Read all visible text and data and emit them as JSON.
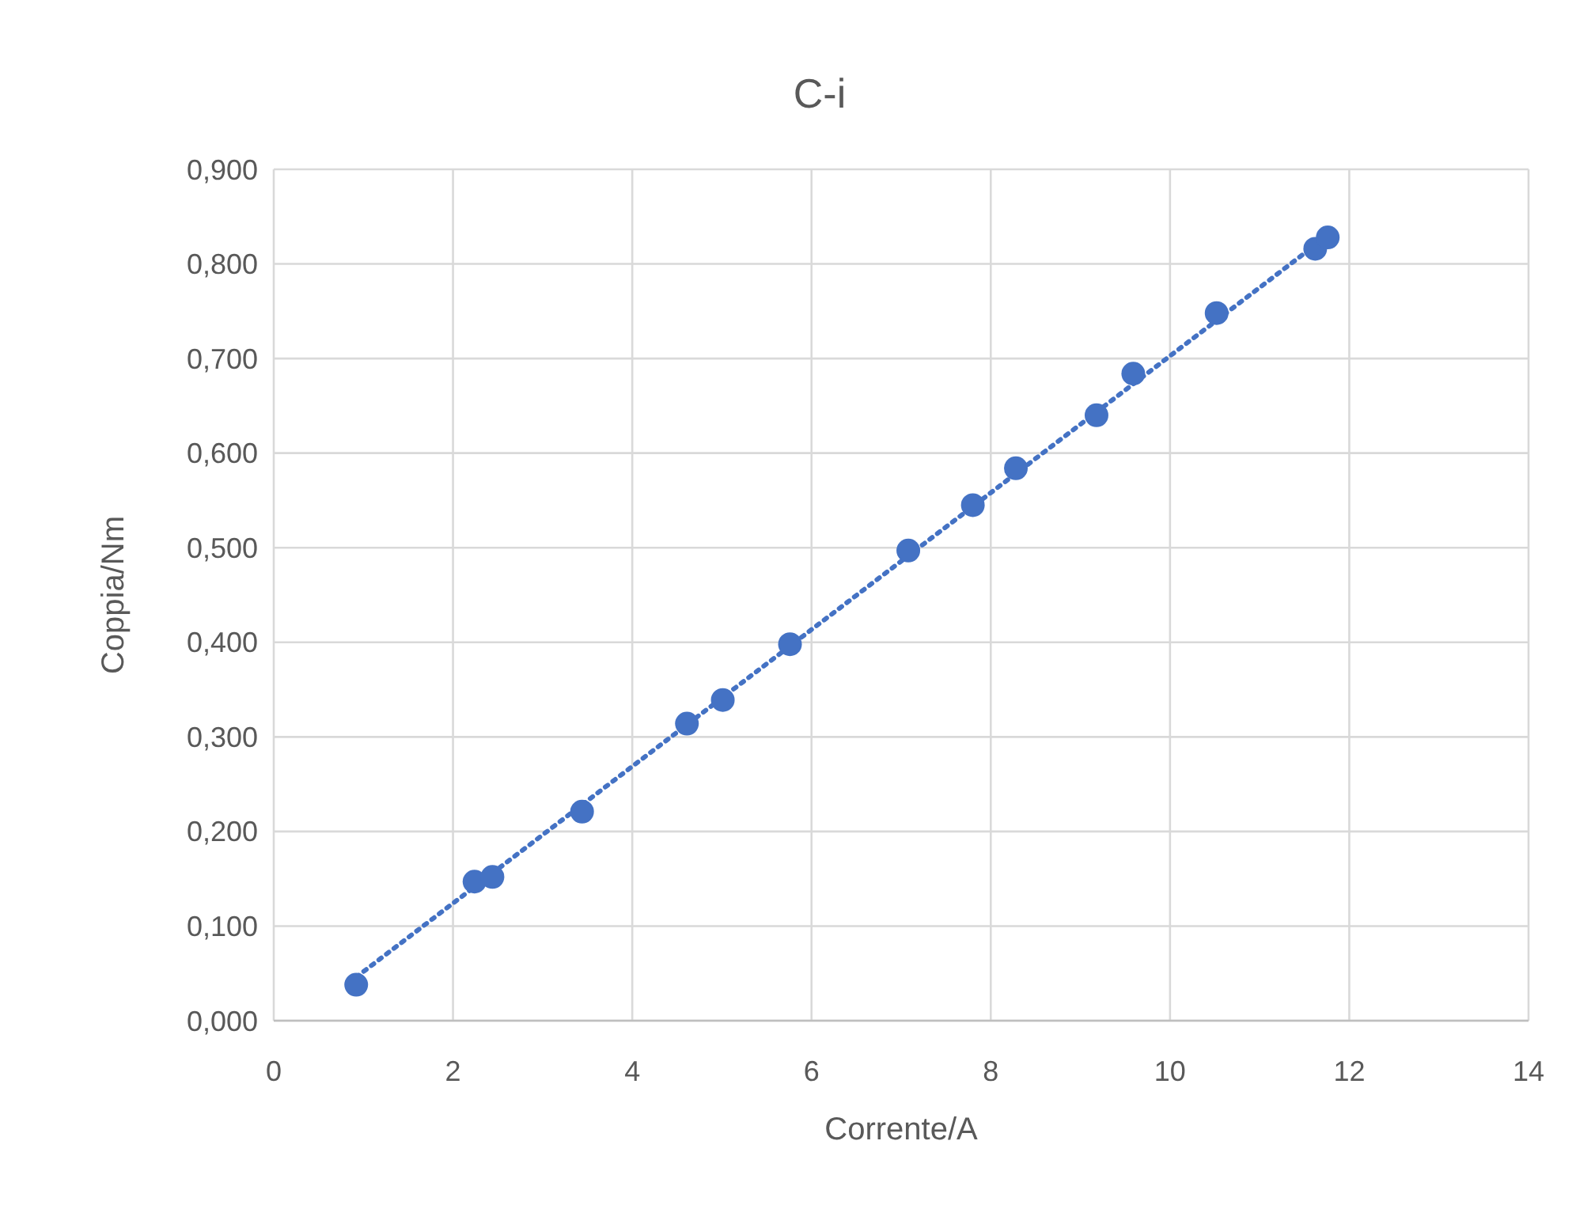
{
  "chart_data": {
    "type": "scatter",
    "title": "C-i",
    "xlabel": "Corrente/A",
    "ylabel": "Coppia/Nm",
    "xlim": [
      0,
      14
    ],
    "xticks": [
      0,
      2,
      4,
      6,
      8,
      10,
      12,
      14
    ],
    "ylim": [
      0,
      0.9
    ],
    "yticks": [
      {
        "value": 0,
        "label": "0,000"
      },
      {
        "value": 0.1,
        "label": "0,100"
      },
      {
        "value": 0.2,
        "label": "0,200"
      },
      {
        "value": 0.3,
        "label": "0,300"
      },
      {
        "value": 0.4,
        "label": "0,400"
      },
      {
        "value": 0.5,
        "label": "0,500"
      },
      {
        "value": 0.6,
        "label": "0,600"
      },
      {
        "value": 0.7,
        "label": "0,700"
      },
      {
        "value": 0.8,
        "label": "0,800"
      },
      {
        "value": 0.9,
        "label": "0,900"
      }
    ],
    "grid": true,
    "series": [
      {
        "color": "#4472c4",
        "marker": "circle",
        "x": [
          0.92,
          2.24,
          2.44,
          3.44,
          4.61,
          5.01,
          5.76,
          7.08,
          7.8,
          8.28,
          9.18,
          9.59,
          10.52,
          11.62,
          11.76
        ],
        "values": [
          0.038,
          0.147,
          0.152,
          0.221,
          0.314,
          0.339,
          0.398,
          0.497,
          0.545,
          0.584,
          0.64,
          0.684,
          0.748,
          0.816,
          0.828
        ]
      },
      {
        "type": "line",
        "color": "#4472c4",
        "marker": "none",
        "line_style": "dotted",
        "x": [
          0.92,
          11.76
        ],
        "values": [
          0.046,
          0.83
        ]
      }
    ]
  }
}
